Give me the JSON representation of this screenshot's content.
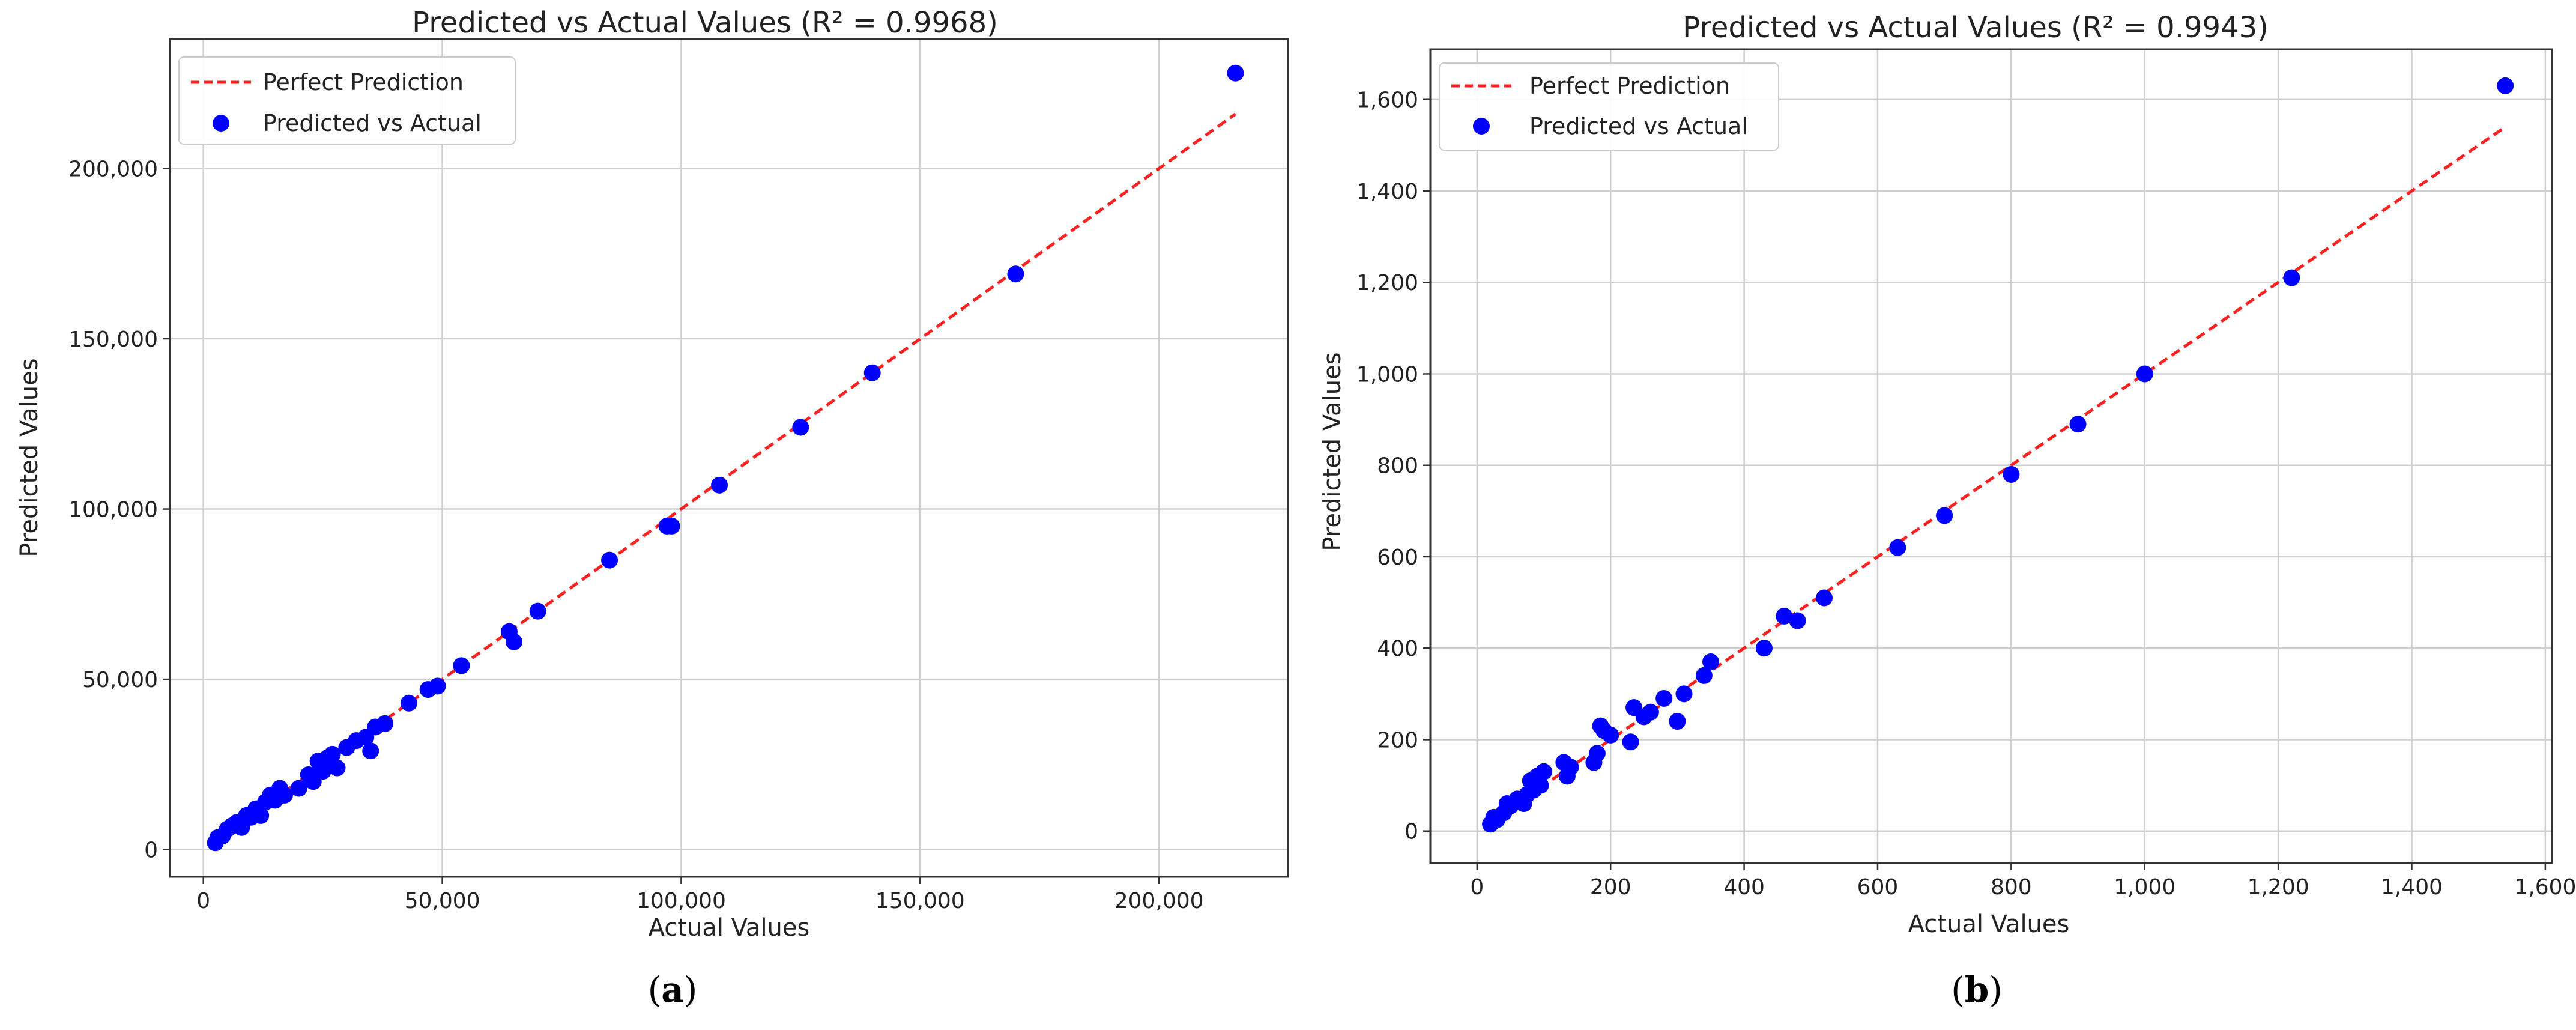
{
  "chart_data": [
    {
      "type": "scatter",
      "title": "Predicted vs Actual Values (R² = 0.9968)",
      "xlabel": "Actual Values",
      "ylabel": "Predicted Values",
      "panel_label": "a",
      "xlim": [
        -7000,
        227000
      ],
      "ylim": [
        -8000,
        238000
      ],
      "xticks": [
        0,
        50000,
        100000,
        150000,
        200000
      ],
      "xtick_labels": [
        "0",
        "50,000",
        "100,000",
        "150,000",
        "200,000"
      ],
      "yticks": [
        0,
        50000,
        100000,
        150000,
        200000
      ],
      "ytick_labels": [
        "0",
        "50,000",
        "100,000",
        "150,000",
        "200,000"
      ],
      "grid": true,
      "legend_position": "top-left",
      "series": [
        {
          "name": "Perfect Prediction",
          "kind": "line",
          "x": [
            2500,
            216000
          ],
          "y": [
            2500,
            216000
          ],
          "color": "#ff2020"
        },
        {
          "name": "Predicted vs Actual",
          "kind": "scatter",
          "color": "#0000ff",
          "x": [
            2500,
            3000,
            4000,
            5000,
            6000,
            7000,
            8000,
            9000,
            10000,
            11000,
            12000,
            13000,
            14000,
            15000,
            16000,
            17000,
            20000,
            22000,
            23000,
            24000,
            25000,
            26000,
            27000,
            28000,
            30000,
            32000,
            34000,
            35000,
            36000,
            38000,
            43000,
            47000,
            49000,
            54000,
            64000,
            65000,
            70000,
            85000,
            97000,
            98000,
            108000,
            125000,
            140000,
            170000,
            216000
          ],
          "y": [
            2000,
            3500,
            4000,
            6000,
            7000,
            8000,
            6500,
            10000,
            9500,
            12000,
            10000,
            14000,
            16000,
            14500,
            18000,
            16000,
            18000,
            22000,
            20000,
            26000,
            23000,
            27000,
            28000,
            24000,
            30000,
            32000,
            33000,
            29000,
            36000,
            37000,
            43000,
            47000,
            48000,
            54000,
            64000,
            61000,
            70000,
            85000,
            95000,
            95000,
            107000,
            124000,
            140000,
            169000,
            228000
          ]
        }
      ]
    },
    {
      "type": "scatter",
      "title": "Predicted vs Actual Values (R² = 0.9943)",
      "xlabel": "Actual Values",
      "ylabel": "Predicted Values",
      "panel_label": "b",
      "xlim": [
        -70,
        1610
      ],
      "ylim": [
        -70,
        1710
      ],
      "xticks": [
        0,
        200,
        400,
        600,
        800,
        1000,
        1200,
        1400,
        1600
      ],
      "xtick_labels": [
        "0",
        "200",
        "400",
        "600",
        "800",
        "1,000",
        "1,200",
        "1,400",
        "1,600"
      ],
      "yticks": [
        0,
        200,
        400,
        600,
        800,
        1000,
        1200,
        1400,
        1600
      ],
      "ytick_labels": [
        "0",
        "200",
        "400",
        "600",
        "800",
        "1,000",
        "1,200",
        "1,400",
        "1,600"
      ],
      "grid": true,
      "legend_position": "top-left",
      "series": [
        {
          "name": "Perfect Prediction",
          "kind": "line",
          "x": [
            20,
            1540
          ],
          "y": [
            20,
            1540
          ],
          "color": "#ff2020"
        },
        {
          "name": "Predicted vs Actual",
          "kind": "scatter",
          "color": "#0000ff",
          "x": [
            20,
            25,
            30,
            40,
            45,
            50,
            60,
            70,
            75,
            80,
            85,
            90,
            95,
            100,
            130,
            135,
            140,
            175,
            180,
            185,
            190,
            200,
            230,
            235,
            250,
            260,
            280,
            300,
            310,
            340,
            350,
            430,
            460,
            480,
            520,
            630,
            700,
            800,
            900,
            1000,
            1220,
            1540
          ],
          "y": [
            15,
            30,
            25,
            40,
            60,
            55,
            70,
            60,
            80,
            110,
            90,
            120,
            100,
            130,
            150,
            120,
            140,
            150,
            170,
            230,
            220,
            210,
            195,
            270,
            250,
            260,
            290,
            240,
            300,
            340,
            370,
            400,
            470,
            460,
            510,
            620,
            690,
            780,
            890,
            1000,
            1210,
            1630
          ]
        }
      ]
    }
  ]
}
